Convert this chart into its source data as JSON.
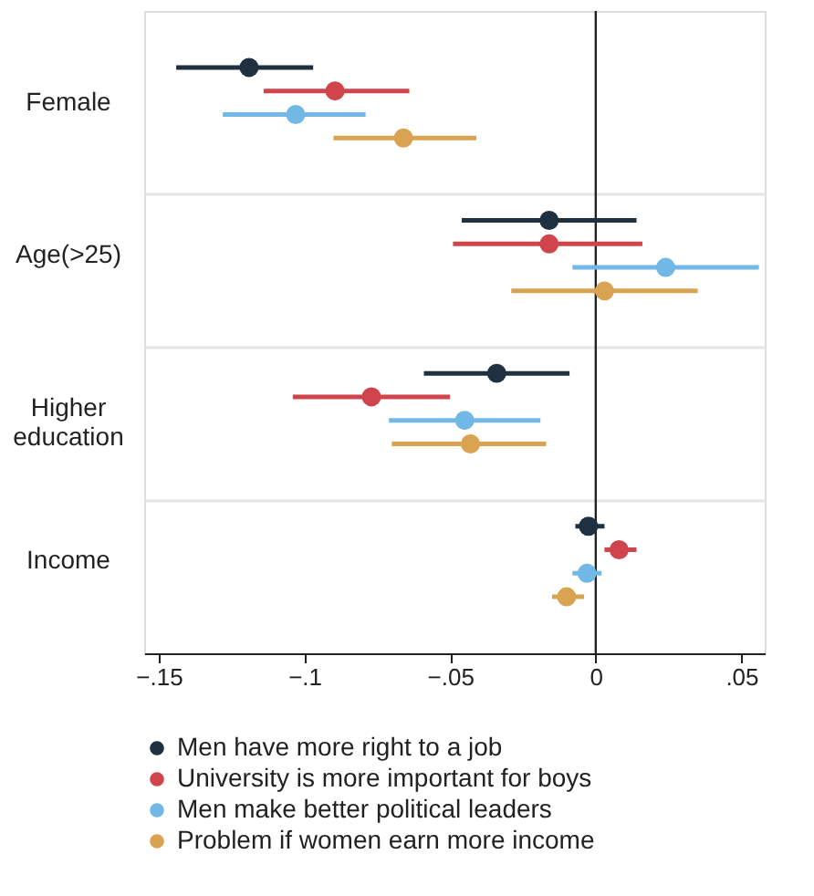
{
  "chart_data": {
    "type": "scatter",
    "orientation": "horizontal",
    "marker": "circle",
    "grid": "y",
    "legend": "bottom",
    "categories": [
      "Female",
      "Age(>25)",
      "Higher education",
      "Income"
    ],
    "xlim": [
      -0.155,
      0.058
    ],
    "xticks": [
      {
        "value": -0.15,
        "label": "−.15"
      },
      {
        "value": -0.1,
        "label": "−.1"
      },
      {
        "value": -0.05,
        "label": "−.05"
      },
      0,
      {
        "value": 0.05,
        "label": ".05"
      }
    ],
    "ref_lines": [
      {
        "axis": "x",
        "value": 0,
        "color": "#222222"
      }
    ],
    "series": [
      {
        "name": "Men have more right to a job",
        "color": "#1f3040",
        "values": [
          -0.119,
          -0.016,
          -0.034,
          -0.0025
        ],
        "errors": [
          [
            -0.144,
            -0.097
          ],
          [
            -0.046,
            0.014
          ],
          [
            -0.059,
            -0.009
          ],
          [
            -0.007,
            0.003
          ]
        ]
      },
      {
        "name": "University is more important for boys",
        "color": "#d0444b",
        "values": [
          -0.0895,
          -0.016,
          -0.077,
          0.008
        ],
        "errors": [
          [
            -0.114,
            -0.064
          ],
          [
            -0.049,
            0.016
          ],
          [
            -0.104,
            -0.05
          ],
          [
            0.003,
            0.014
          ]
        ]
      },
      {
        "name": "Men make better political leaders",
        "color": "#72b8e6",
        "values": [
          -0.103,
          0.024,
          -0.045,
          -0.003
        ],
        "errors": [
          [
            -0.128,
            -0.079
          ],
          [
            -0.008,
            0.056
          ],
          [
            -0.071,
            -0.019
          ],
          [
            -0.008,
            0.002
          ]
        ]
      },
      {
        "name": "Problem if women earn more income",
        "color": "#d9a352",
        "values": [
          -0.066,
          0.003,
          -0.043,
          -0.01
        ],
        "errors": [
          [
            -0.09,
            -0.041
          ],
          [
            -0.029,
            0.035
          ],
          [
            -0.07,
            -0.017
          ],
          [
            -0.015,
            -0.004
          ]
        ]
      }
    ]
  }
}
